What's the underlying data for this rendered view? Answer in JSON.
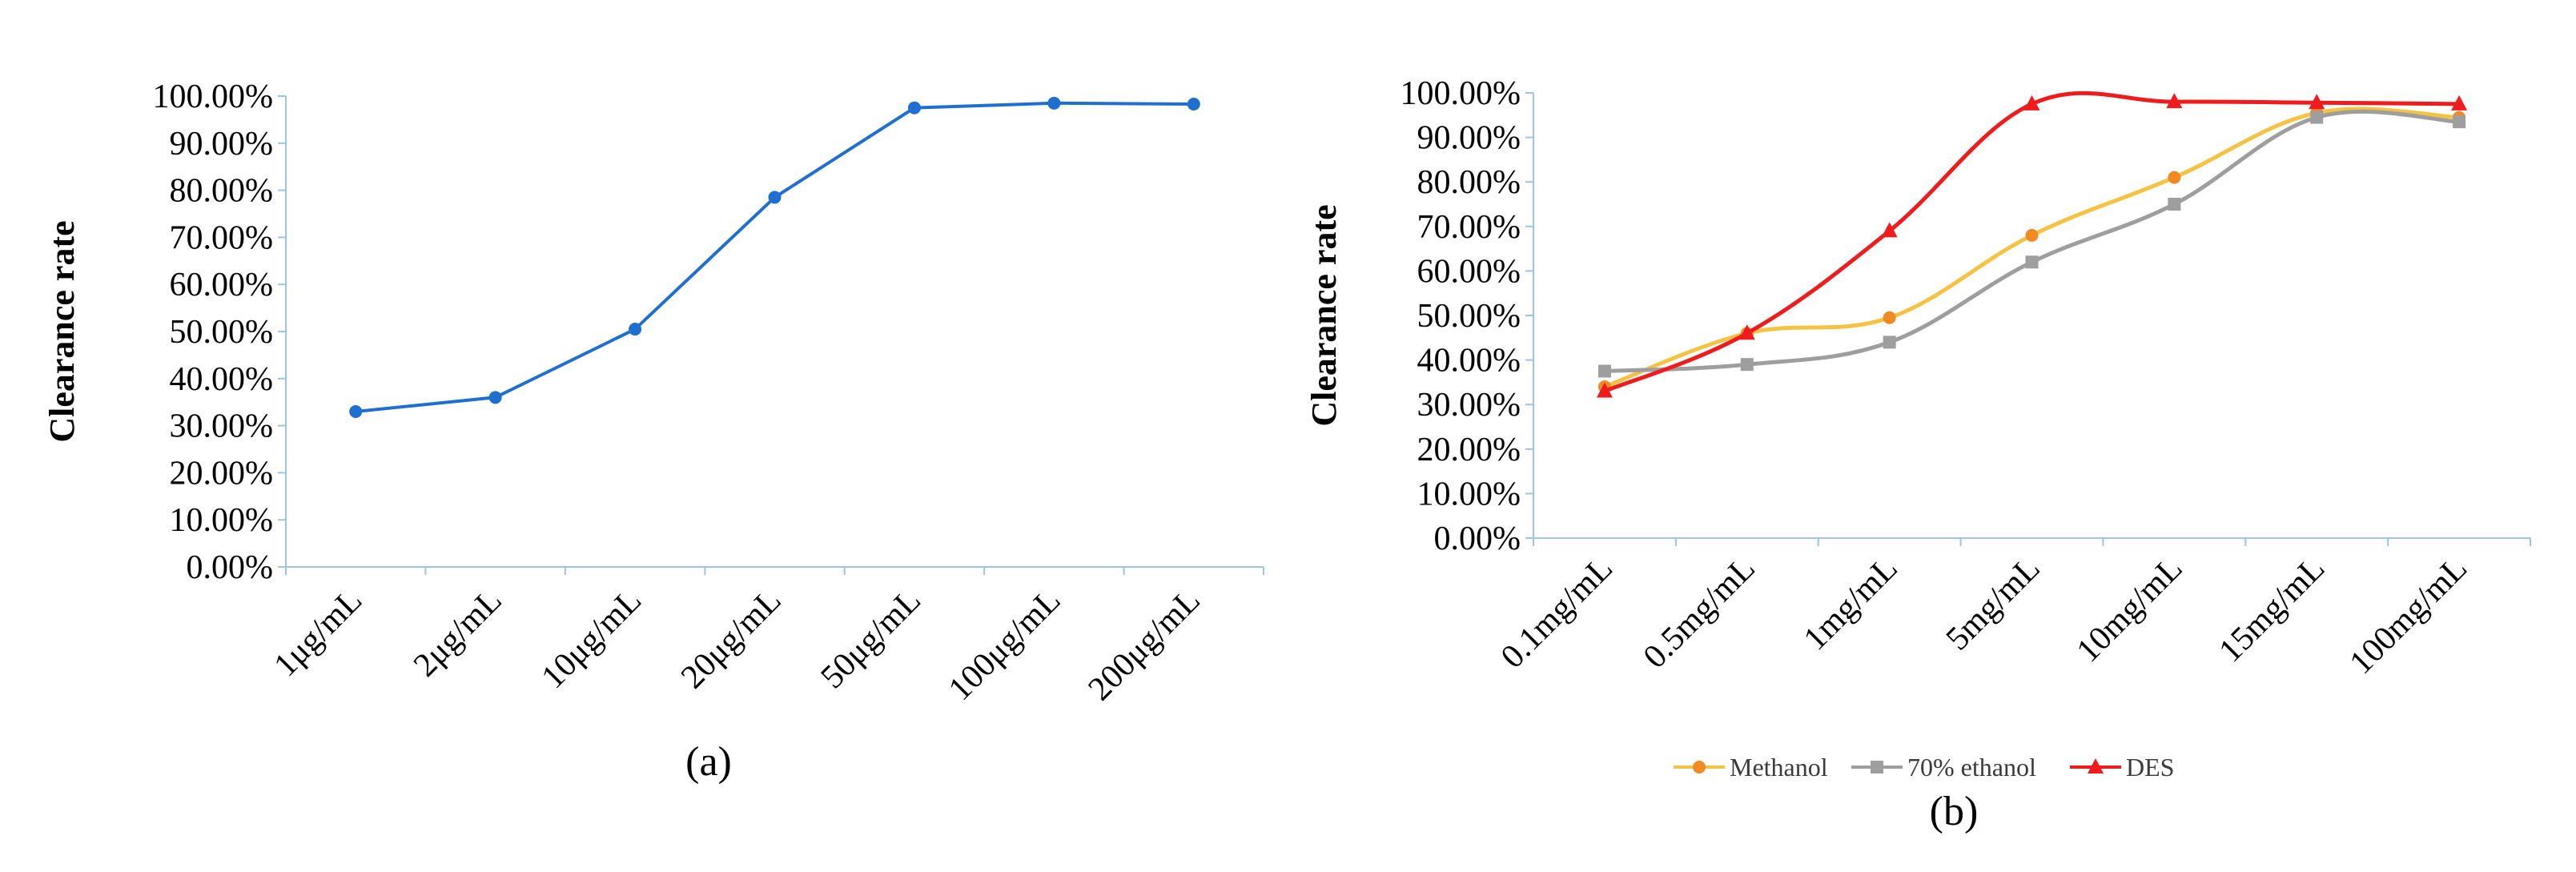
{
  "chart_data": [
    {
      "type": "line",
      "caption": "(a)",
      "ylabel": "Clearance rate",
      "xlabel": "",
      "ylim": [
        0,
        1
      ],
      "ytick_labels": [
        "0.00%",
        "10.00%",
        "20.00%",
        "30.00%",
        "40.00%",
        "50.00%",
        "60.00%",
        "70.00%",
        "80.00%",
        "90.00%",
        "100.00%"
      ],
      "categories": [
        "1μg/mL",
        "2μg/mL",
        "10μg/mL",
        "20μg/mL",
        "50μg/mL",
        "100μg/mL",
        "200μg/mL"
      ],
      "series": [
        {
          "values": [
            0.33,
            0.36,
            0.505,
            0.785,
            0.975,
            0.985,
            0.983
          ],
          "color": "#1f6fd1",
          "marker": "circle"
        }
      ],
      "legend": "none",
      "grid": false
    },
    {
      "type": "line",
      "caption": "(b)",
      "ylabel": "Clearance rate",
      "xlabel": "",
      "ylim": [
        0,
        1
      ],
      "ytick_labels": [
        "0.00%",
        "10.00%",
        "20.00%",
        "30.00%",
        "40.00%",
        "50.00%",
        "60.00%",
        "70.00%",
        "80.00%",
        "90.00%",
        "100.00%"
      ],
      "categories": [
        "0.1mg/mL",
        "0.5mg/mL",
        "1mg/mL",
        "5mg/mL",
        "10mg/mL",
        "15mg/mL",
        "100mg/mL"
      ],
      "series": [
        {
          "name": "Methanol",
          "values": [
            0.34,
            0.46,
            0.495,
            0.68,
            0.81,
            0.955,
            0.945
          ],
          "color": "#f5c343",
          "marker_color": "#f08a24",
          "marker": "circle"
        },
        {
          "name": "70% ethanol",
          "values": [
            0.375,
            0.39,
            0.44,
            0.62,
            0.75,
            0.945,
            0.935
          ],
          "color": "#9e9e9e",
          "marker_color": "#9e9e9e",
          "marker": "square"
        },
        {
          "name": "DES",
          "values": [
            0.33,
            0.46,
            0.69,
            0.975,
            0.98,
            0.978,
            0.975
          ],
          "color": "#ee1c1c",
          "marker_color": "#ee1c1c",
          "marker": "triangle"
        }
      ],
      "smooth": true,
      "legend": "bottom",
      "grid": false
    }
  ]
}
